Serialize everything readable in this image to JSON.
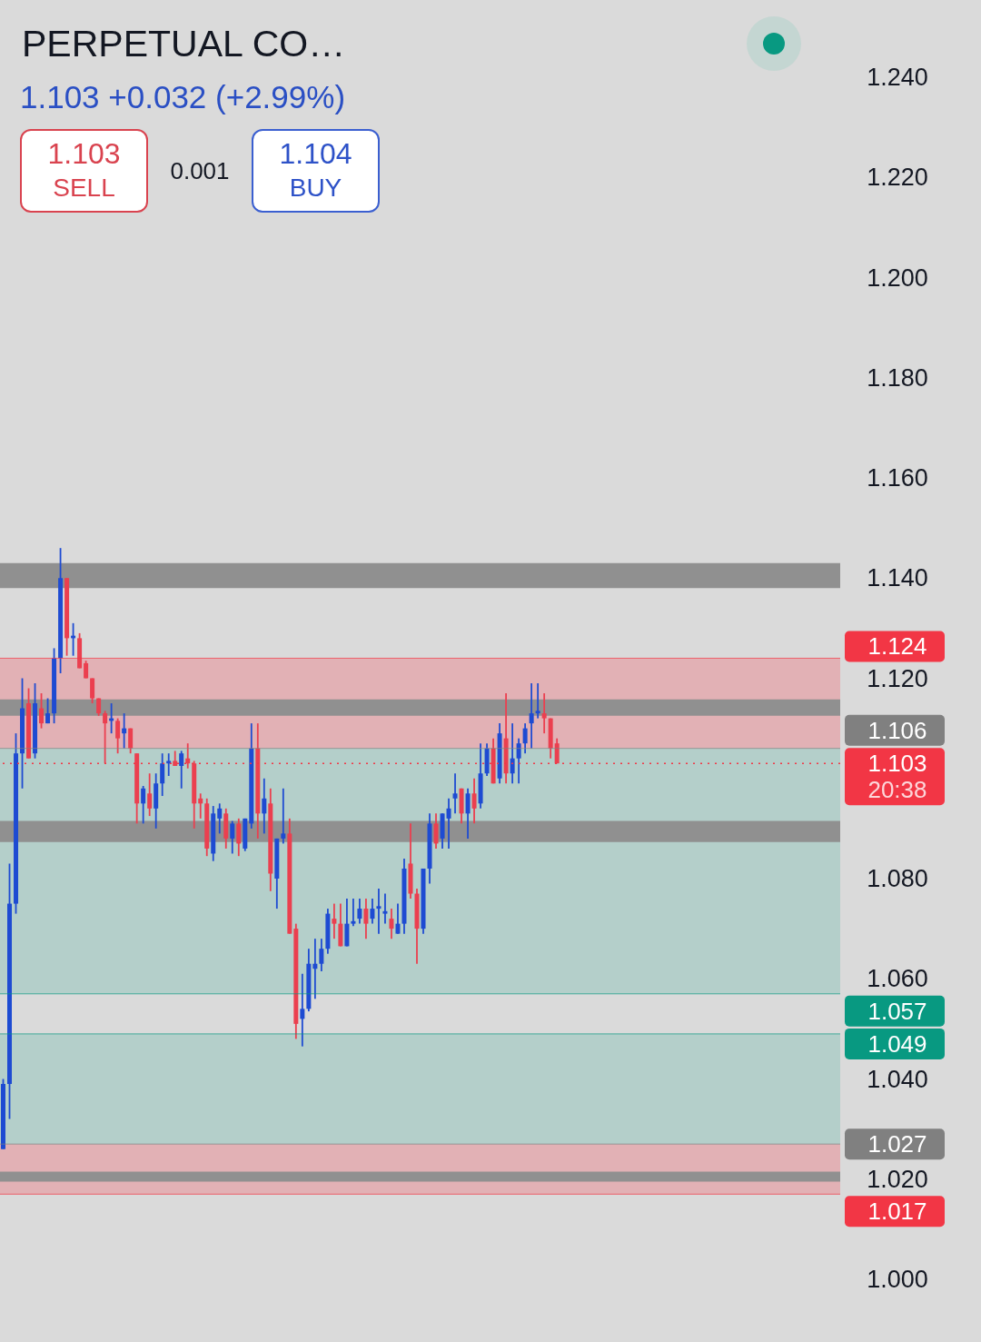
{
  "chart_data": {
    "type": "candlestick",
    "title": "PERPETUAL CO…",
    "subtitle": "1.103 +0.032 (+2.99%)",
    "annotations": [
      "1.103 SELL",
      "0.001",
      "1.104 BUY"
    ],
    "categories": [
      null,
      null,
      null,
      null,
      null,
      null,
      null,
      null,
      null,
      null,
      null,
      null,
      null,
      null,
      null,
      null,
      null,
      null,
      null,
      null,
      null,
      null,
      null,
      null,
      null,
      null,
      null,
      null,
      null,
      null,
      null,
      null,
      null,
      null,
      null,
      null,
      null,
      null,
      null,
      null,
      null,
      null,
      null,
      null,
      null,
      null,
      null,
      null,
      null,
      null,
      null,
      null,
      null,
      null,
      null,
      null,
      null,
      null,
      null,
      null,
      null,
      null,
      null,
      null,
      null,
      null,
      null,
      null,
      null,
      null,
      null,
      null,
      null,
      null,
      null,
      null,
      null,
      null,
      null,
      null,
      null,
      null,
      null,
      null,
      null,
      null,
      null,
      null,
      null,
      null,
      null,
      null,
      null,
      null,
      null,
      null,
      null,
      null,
      null,
      null,
      null,
      null,
      null,
      null,
      null,
      null,
      null,
      null,
      null,
      null,
      null,
      null,
      null,
      null,
      null,
      null,
      null,
      null,
      null,
      null,
      null,
      null,
      null,
      null,
      null,
      null,
      null,
      null,
      null,
      null,
      null,
      null
    ],
    "ohlc": [
      [
        1.026,
        1.04,
        1.026,
        1.039
      ],
      [
        1.039,
        1.083,
        1.032,
        1.075
      ],
      [
        1.075,
        1.109,
        1.073,
        1.105
      ],
      [
        1.105,
        1.12,
        1.098,
        1.114
      ],
      [
        1.115,
        1.118,
        1.104,
        1.104
      ],
      [
        1.105,
        1.119,
        1.104,
        1.115
      ],
      [
        1.114,
        1.117,
        1.11,
        1.111
      ],
      [
        1.111,
        1.116,
        1.111,
        1.113
      ],
      [
        1.113,
        1.126,
        1.111,
        1.124
      ],
      [
        1.124,
        1.146,
        1.121,
        1.14
      ],
      [
        1.14,
        1.14,
        1.1245,
        1.128
      ],
      [
        1.128,
        1.131,
        1.1245,
        1.1285
      ],
      [
        1.128,
        1.129,
        1.122,
        1.122
      ],
      [
        1.123,
        1.1235,
        1.12,
        1.12
      ],
      [
        1.12,
        1.12,
        1.115,
        1.116
      ],
      [
        1.116,
        1.116,
        1.1125,
        1.113
      ],
      [
        1.113,
        1.1135,
        1.103,
        1.111
      ],
      [
        1.1115,
        1.115,
        1.109,
        1.112
      ],
      [
        1.1115,
        1.112,
        1.105,
        1.108
      ],
      [
        1.109,
        1.113,
        1.106,
        1.11
      ],
      [
        1.11,
        1.11,
        1.105,
        1.106
      ],
      [
        1.105,
        1.105,
        1.091,
        1.095
      ],
      [
        1.095,
        1.0985,
        1.091,
        1.098
      ],
      [
        1.097,
        1.101,
        1.0925,
        1.094
      ],
      [
        1.094,
        1.101,
        1.09,
        1.099
      ],
      [
        1.099,
        1.105,
        1.0965,
        1.103
      ],
      [
        1.103,
        1.105,
        1.1005,
        1.1035
      ],
      [
        1.1035,
        1.1055,
        1.1025,
        1.1025
      ],
      [
        1.1025,
        1.1055,
        1.098,
        1.105
      ],
      [
        1.104,
        1.107,
        1.102,
        1.103
      ],
      [
        1.103,
        1.1035,
        1.09,
        1.095
      ],
      [
        1.096,
        1.097,
        1.092,
        1.095
      ],
      [
        1.095,
        1.096,
        1.0845,
        1.086
      ],
      [
        1.085,
        1.0945,
        1.0835,
        1.093
      ],
      [
        1.092,
        1.095,
        1.089,
        1.094
      ],
      [
        1.093,
        1.094,
        1.086,
        1.088
      ],
      [
        1.088,
        1.0915,
        1.085,
        1.091
      ],
      [
        1.091,
        1.092,
        1.0845,
        1.087
      ],
      [
        1.086,
        1.092,
        1.0855,
        1.092
      ],
      [
        1.091,
        1.111,
        1.09,
        1.106
      ],
      [
        1.106,
        1.111,
        1.088,
        1.093
      ],
      [
        1.093,
        1.1,
        1.089,
        1.096
      ],
      [
        1.095,
        1.098,
        1.0775,
        1.081
      ],
      [
        1.08,
        1.088,
        1.074,
        1.088
      ],
      [
        1.088,
        1.098,
        1.087,
        1.089
      ],
      [
        1.089,
        1.092,
        1.069,
        1.069
      ],
      [
        1.07,
        1.071,
        1.048,
        1.051
      ],
      [
        1.052,
        1.061,
        1.0465,
        1.054
      ],
      [
        1.054,
        1.066,
        1.0535,
        1.063
      ],
      [
        1.062,
        1.068,
        1.056,
        1.063
      ],
      [
        1.063,
        1.068,
        1.0615,
        1.066
      ],
      [
        1.066,
        1.074,
        1.065,
        1.073
      ],
      [
        1.072,
        1.075,
        1.068,
        1.071
      ],
      [
        1.071,
        1.075,
        1.0665,
        1.0665
      ],
      [
        1.0665,
        1.076,
        1.0665,
        1.071
      ],
      [
        1.071,
        1.076,
        1.0705,
        1.0715
      ],
      [
        1.072,
        1.076,
        1.071,
        1.074
      ],
      [
        1.074,
        1.076,
        1.068,
        1.071
      ],
      [
        1.072,
        1.076,
        1.071,
        1.074
      ],
      [
        1.074,
        1.078,
        1.069,
        1.0745
      ],
      [
        1.073,
        1.077,
        1.071,
        1.0735
      ],
      [
        1.072,
        1.074,
        1.068,
        1.07
      ],
      [
        1.069,
        1.075,
        1.069,
        1.071
      ],
      [
        1.071,
        1.084,
        1.069,
        1.082
      ],
      [
        1.083,
        1.091,
        1.076,
        1.077
      ],
      [
        1.077,
        1.078,
        1.063,
        1.07
      ],
      [
        1.07,
        1.082,
        1.069,
        1.082
      ],
      [
        1.082,
        1.093,
        1.079,
        1.091
      ],
      [
        1.091,
        1.093,
        1.086,
        1.087
      ],
      [
        1.088,
        1.093,
        1.086,
        1.093
      ],
      [
        1.092,
        1.096,
        1.086,
        1.094
      ],
      [
        1.096,
        1.101,
        1.093,
        1.097
      ],
      [
        1.098,
        1.098,
        1.091,
        1.093
      ],
      [
        1.093,
        1.098,
        1.088,
        1.097
      ],
      [
        1.097,
        1.1,
        1.091,
        1.094
      ],
      [
        1.095,
        1.107,
        1.094,
        1.101
      ],
      [
        1.101,
        1.107,
        1.1005,
        1.106
      ],
      [
        1.106,
        1.108,
        1.099,
        1.099
      ],
      [
        1.1,
        1.111,
        1.099,
        1.109
      ],
      [
        1.108,
        1.117,
        1.099,
        1.101
      ],
      [
        1.101,
        1.111,
        1.099,
        1.104
      ],
      [
        1.104,
        1.108,
        1.099,
        1.107
      ],
      [
        1.107,
        1.111,
        1.105,
        1.11
      ],
      [
        1.111,
        1.119,
        1.106,
        1.113
      ],
      [
        1.113,
        1.119,
        1.112,
        1.1135
      ],
      [
        1.113,
        1.117,
        1.109,
        1.112
      ],
      [
        1.112,
        1.112,
        1.104,
        1.106
      ],
      [
        1.107,
        1.108,
        1.103,
        1.103
      ],
      null,
      null,
      null,
      null,
      null,
      null,
      null,
      null,
      null,
      null,
      null,
      null,
      null,
      null,
      null,
      null,
      null,
      null,
      null,
      null,
      null,
      null,
      null,
      null,
      null,
      null,
      null,
      null,
      null,
      null,
      null,
      null,
      null,
      null,
      null,
      null,
      null,
      null,
      null,
      null,
      null,
      null,
      null,
      null
    ],
    "colors": [
      "#1e4bd2",
      "#1e4bd2",
      "#1e4bd2",
      "#1e4bd2",
      "#eb3f4f",
      "#1e4bd2",
      "#eb3f4f",
      "#1e4bd2",
      "#1e4bd2",
      "#1e4bd2",
      "#eb3f4f",
      "#1e4bd2",
      "#eb3f4f",
      "#eb3f4f",
      "#eb3f4f",
      "#eb3f4f",
      "#eb3f4f",
      "#1e4bd2",
      "#eb3f4f",
      "#1e4bd2",
      "#eb3f4f",
      "#eb3f4f",
      "#1e4bd2",
      "#eb3f4f",
      "#1e4bd2",
      "#1e4bd2",
      "#1e4bd2",
      "#eb3f4f",
      "#1e4bd2",
      "#eb3f4f",
      "#eb3f4f",
      "#eb3f4f",
      "#eb3f4f",
      "#1e4bd2",
      "#1e4bd2",
      "#eb3f4f",
      "#1e4bd2",
      "#eb3f4f",
      "#1e4bd2",
      "#1e4bd2",
      "#eb3f4f",
      "#1e4bd2",
      "#eb3f4f",
      "#1e4bd2",
      "#1e4bd2",
      "#eb3f4f",
      "#eb3f4f",
      "#1e4bd2",
      "#1e4bd2",
      "#1e4bd2",
      "#1e4bd2",
      "#1e4bd2",
      "#eb3f4f",
      "#eb3f4f",
      "#1e4bd2",
      "#1e4bd2",
      "#1e4bd2",
      "#eb3f4f",
      "#1e4bd2",
      "#1e4bd2",
      "#1e4bd2",
      "#eb3f4f",
      "#1e4bd2",
      "#1e4bd2",
      "#eb3f4f",
      "#eb3f4f",
      "#1e4bd2",
      "#1e4bd2",
      "#eb3f4f",
      "#1e4bd2",
      "#1e4bd2",
      "#1e4bd2",
      "#eb3f4f",
      "#1e4bd2",
      "#eb3f4f",
      "#1e4bd2",
      "#1e4bd2",
      "#eb3f4f",
      "#1e4bd2",
      "#eb3f4f",
      "#1e4bd2",
      "#1e4bd2",
      "#1e4bd2",
      "#1e4bd2",
      "#1e4bd2",
      "#eb3f4f",
      "#eb3f4f",
      "#eb3f4f",
      null,
      null,
      null,
      null,
      null,
      null,
      null,
      null,
      null,
      null,
      null,
      null,
      null,
      null,
      null,
      null,
      null,
      null,
      null,
      null,
      null,
      null,
      null,
      null,
      null,
      null,
      null,
      null,
      null,
      null,
      null,
      null,
      null,
      null,
      null,
      null,
      null,
      null,
      null,
      null,
      null,
      null,
      null,
      null
    ],
    "ylim": [
      1.0,
      1.24
    ],
    "yticks": [
      {
        "value": 1.24,
        "label": "1.240"
      },
      {
        "value": 1.22,
        "label": "1.220"
      },
      {
        "value": 1.2,
        "label": "1.200"
      },
      {
        "value": 1.18,
        "label": "1.180"
      },
      {
        "value": 1.16,
        "label": "1.160"
      },
      {
        "value": 1.14,
        "label": "1.140"
      },
      {
        "value": 1.12,
        "label": "1.120"
      },
      {
        "value": 1.08,
        "label": "1.080"
      },
      {
        "value": 1.06,
        "label": "1.060"
      },
      {
        "value": 1.04,
        "label": "1.040"
      },
      {
        "value": 1.02,
        "label": "1.020"
      },
      {
        "value": 1.0,
        "label": "1.000"
      }
    ],
    "tick_labels": "y",
    "bands": [
      {
        "axis": "y",
        "from": 1.106,
        "to": 1.124,
        "color": "#e2b1b5"
      },
      {
        "axis": "y",
        "from": 1.057,
        "to": 1.106,
        "color": "#b4cfca"
      },
      {
        "axis": "y",
        "from": 1.027,
        "to": 1.049,
        "color": "#b4cfca"
      },
      {
        "axis": "y",
        "from": 1.017,
        "to": 1.027,
        "color": "#e2b1b5"
      },
      {
        "axis": "y",
        "from": 1.138,
        "to": 1.143,
        "color": "#909090"
      },
      {
        "axis": "y",
        "from": 1.1125,
        "to": 1.1158,
        "color": "#909090"
      },
      {
        "axis": "y",
        "from": 1.0873,
        "to": 1.0915,
        "color": "#909090"
      },
      {
        "axis": "y",
        "from": 1.0195,
        "to": 1.0215,
        "color": "#909090"
      }
    ],
    "ref_lines": [
      {
        "axis": "y",
        "value": 1.124,
        "label": "1.124",
        "color": "#f23645"
      },
      {
        "axis": "y",
        "value": 1.106,
        "label": "1.106",
        "color": "#808080"
      },
      {
        "axis": "y",
        "value": 1.103,
        "label": "1.103 20:38",
        "color": "#f23645",
        "line_style": "dotted"
      },
      {
        "axis": "y",
        "value": 1.057,
        "label": "1.057",
        "color": "#089981"
      },
      {
        "axis": "y",
        "value": 1.049,
        "label": "1.049",
        "color": "#089981"
      },
      {
        "axis": "y",
        "value": 1.027,
        "label": "1.027",
        "color": "#808080"
      },
      {
        "axis": "y",
        "value": 1.017,
        "label": "1.017",
        "color": "#f23645"
      }
    ]
  }
}
